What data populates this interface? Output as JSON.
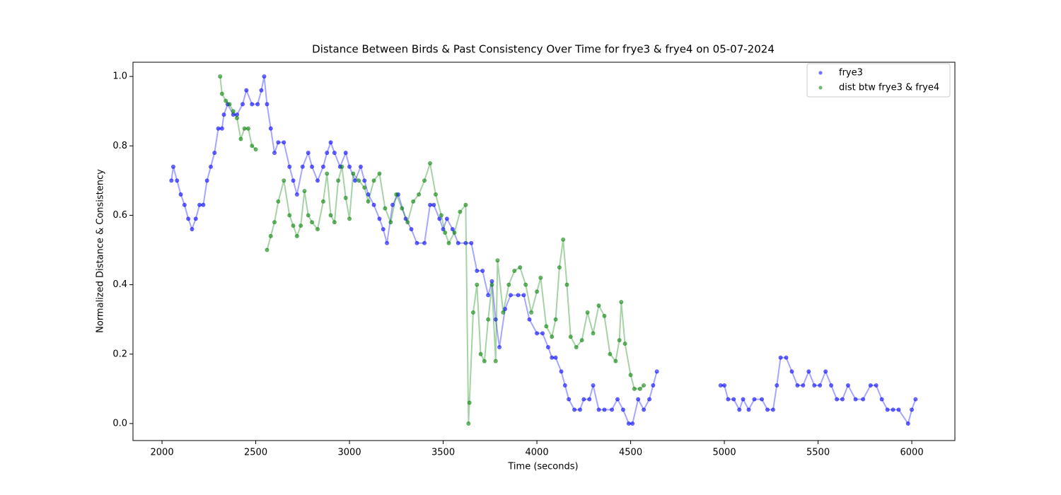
{
  "chart_data": {
    "type": "scatter",
    "title": "Distance Between Birds & Past Consistency Over Time for frye3 & frye4 on 05-07-2024",
    "x_label": "Time (seconds)",
    "y_label": "Normalized Distance & Consistency",
    "xlim": [
      1845,
      6230
    ],
    "ylim": [
      -0.049,
      1.041
    ],
    "xticks": [
      2000,
      2500,
      3000,
      3500,
      4000,
      4500,
      5000,
      5500,
      6000
    ],
    "yticks": [
      {
        "value": 0,
        "label": "0.0"
      },
      {
        "value": 0.2,
        "label": "0.2"
      },
      {
        "value": 0.4,
        "label": "0.4"
      },
      {
        "value": 0.6,
        "label": "0.6"
      },
      {
        "value": 0.8,
        "label": "0.8"
      },
      {
        "value": 1,
        "label": "1.0"
      }
    ],
    "legend": "upper right",
    "series": [
      {
        "name": "frye3",
        "color": "#0000ff",
        "x": [
          2050,
          2060,
          2080,
          2100,
          2120,
          2140,
          2160,
          2180,
          2200,
          2220,
          2240,
          2260,
          2280,
          2300,
          2320,
          2330,
          2350,
          2380,
          2400,
          2430,
          2450,
          2480,
          2510,
          2530,
          2545,
          2560,
          2580,
          2600,
          2620,
          2650,
          2680,
          2700,
          2720,
          2750,
          2780,
          2800,
          2830,
          2860,
          2880,
          2900,
          2920,
          2950,
          2980,
          3000,
          3030,
          3060,
          3080,
          3100,
          3130,
          3160,
          3180,
          3200,
          3230,
          3260,
          3300,
          3330,
          3360,
          3400,
          3430,
          3450,
          3480,
          3500,
          3520,
          3550,
          3580,
          3620,
          3650,
          3680,
          3710,
          3740,
          3760,
          3780,
          3800,
          3830,
          3860,
          3900,
          3930,
          3960,
          4000,
          4030,
          4060,
          4080,
          4100,
          4130,
          4150,
          4170,
          4200,
          4230,
          4250,
          4280,
          4300,
          4330,
          4360,
          4400,
          4430,
          4460,
          4490,
          4510,
          4540,
          4570,
          4600,
          4620,
          4640,
          4800,
          4980,
          5000,
          5020,
          5050,
          5080,
          5100,
          5130,
          5160,
          5200,
          5230,
          5260,
          5280,
          5300,
          5330,
          5360,
          5390,
          5420,
          5450,
          5480,
          5510,
          5540,
          5570,
          5600,
          5630,
          5660,
          5700,
          5740,
          5780,
          5810,
          5840,
          5870,
          5900,
          5930,
          5980,
          6000,
          6020
        ],
        "values": [
          0.7,
          0.74,
          0.7,
          0.66,
          0.63,
          0.59,
          0.56,
          0.59,
          0.63,
          0.63,
          0.7,
          0.74,
          0.78,
          0.85,
          0.85,
          0.89,
          0.92,
          0.89,
          0.89,
          0.92,
          0.96,
          0.92,
          0.92,
          0.96,
          1.0,
          0.92,
          0.85,
          0.78,
          0.81,
          0.81,
          0.74,
          0.7,
          0.66,
          0.74,
          0.78,
          0.74,
          0.7,
          0.74,
          0.78,
          0.81,
          0.78,
          0.74,
          0.78,
          0.74,
          0.7,
          0.74,
          0.7,
          0.66,
          0.63,
          0.59,
          0.56,
          0.52,
          0.63,
          0.66,
          0.59,
          0.56,
          0.52,
          0.52,
          0.63,
          0.63,
          0.59,
          0.56,
          0.59,
          0.56,
          0.52,
          0.52,
          0.52,
          0.44,
          0.44,
          0.37,
          0.41,
          0.3,
          0.22,
          0.33,
          0.37,
          0.37,
          0.37,
          0.3,
          0.26,
          0.26,
          0.22,
          0.19,
          0.19,
          0.15,
          0.11,
          0.07,
          0.04,
          0.04,
          0.07,
          0.07,
          0.11,
          0.04,
          0.04,
          0.04,
          0.07,
          0.04,
          0.0,
          0.0,
          0.07,
          0.04,
          0.07,
          0.11,
          0.15,
          null,
          0.11,
          0.11,
          0.07,
          0.07,
          0.04,
          0.07,
          0.04,
          0.07,
          0.07,
          0.04,
          0.04,
          0.11,
          0.19,
          0.19,
          0.15,
          0.11,
          0.11,
          0.15,
          0.11,
          0.11,
          0.15,
          0.11,
          0.07,
          0.07,
          0.11,
          0.07,
          0.07,
          0.11,
          0.11,
          0.07,
          0.04,
          0.04,
          0.04,
          0.0,
          0.04,
          0.07
        ]
      },
      {
        "name": "dist btw frye3 & frye4",
        "color": "#008000",
        "x": [
          2310,
          2320,
          2340,
          2360,
          2380,
          2400,
          2420,
          2440,
          2460,
          2480,
          2500,
          2530,
          2560,
          2580,
          2600,
          2620,
          2650,
          2680,
          2700,
          2720,
          2740,
          2760,
          2780,
          2800,
          2830,
          2860,
          2880,
          2900,
          2920,
          2940,
          2960,
          2980,
          3000,
          3020,
          3050,
          3080,
          3100,
          3130,
          3160,
          3190,
          3220,
          3250,
          3280,
          3310,
          3340,
          3370,
          3400,
          3430,
          3460,
          3490,
          3510,
          3530,
          3560,
          3590,
          3620,
          3635,
          3640,
          3660,
          3680,
          3700,
          3720,
          3740,
          3760,
          3780,
          3790,
          3820,
          3850,
          3880,
          3910,
          3940,
          3970,
          4000,
          4020,
          4050,
          4080,
          4100,
          4120,
          4140,
          4160,
          4180,
          4210,
          4240,
          4270,
          4300,
          4330,
          4360,
          4390,
          4420,
          4440,
          4450,
          4470,
          4500,
          4520,
          4550,
          4570
        ],
        "values": [
          1.0,
          0.95,
          0.93,
          0.92,
          0.9,
          0.88,
          0.82,
          0.85,
          0.85,
          0.8,
          0.79,
          null,
          0.5,
          0.54,
          0.58,
          0.64,
          0.7,
          0.6,
          0.57,
          0.54,
          0.57,
          0.67,
          0.6,
          0.58,
          0.56,
          0.64,
          0.72,
          0.6,
          0.58,
          0.7,
          0.74,
          0.65,
          0.59,
          0.72,
          0.7,
          0.68,
          0.64,
          0.7,
          0.72,
          0.62,
          0.58,
          0.66,
          0.62,
          0.58,
          0.64,
          0.66,
          0.7,
          0.75,
          0.66,
          0.6,
          0.55,
          0.52,
          0.55,
          0.61,
          0.63,
          0.0,
          0.06,
          0.32,
          0.4,
          0.2,
          0.18,
          0.3,
          0.4,
          0.18,
          0.47,
          0.32,
          0.4,
          0.44,
          0.45,
          0.4,
          0.32,
          0.38,
          0.42,
          0.28,
          0.25,
          0.3,
          0.45,
          0.53,
          0.4,
          0.25,
          0.22,
          0.24,
          0.32,
          0.26,
          0.34,
          0.31,
          0.2,
          0.18,
          0.24,
          0.35,
          0.23,
          0.14,
          0.1,
          0.1,
          0.11
        ]
      }
    ]
  }
}
